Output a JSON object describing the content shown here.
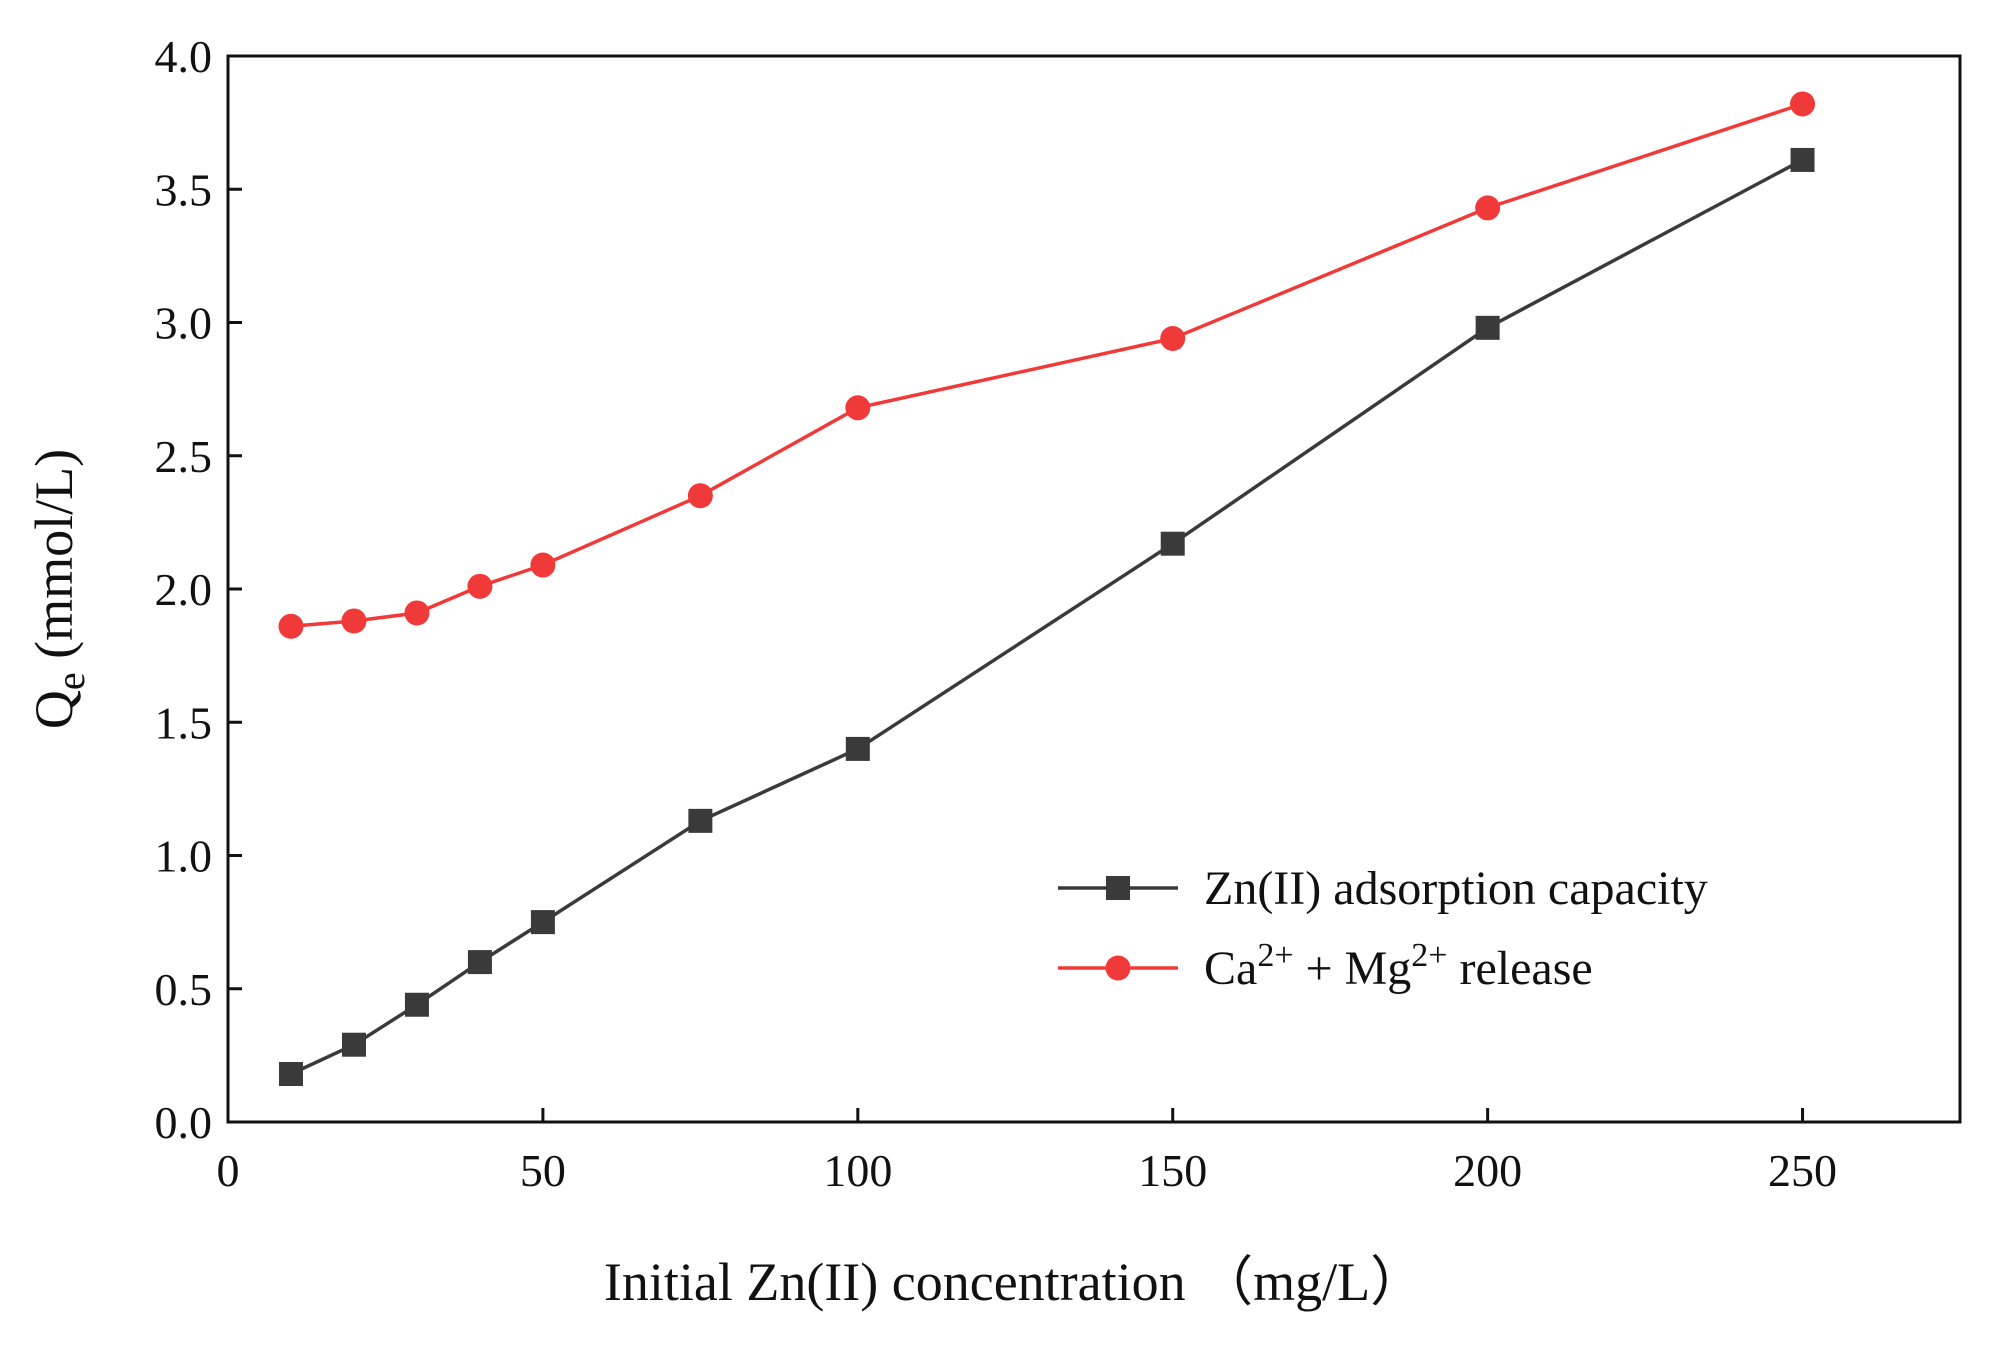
{
  "chart_data": {
    "type": "line",
    "title": "",
    "xlabel": "Initial Zn(II) concentration （mg/L）",
    "ylabel": {
      "main": "Q",
      "sub": "e",
      "rest": " (mmol/L)"
    },
    "xlim": [
      0,
      275
    ],
    "ylim": [
      0,
      4.0
    ],
    "xticks": [
      0,
      50,
      100,
      150,
      200,
      250
    ],
    "yticks": [
      0.0,
      0.5,
      1.0,
      1.5,
      2.0,
      2.5,
      3.0,
      3.5,
      4.0
    ],
    "ytick_labels": [
      "0.0",
      "0.5",
      "1.0",
      "1.5",
      "2.0",
      "2.5",
      "3.0",
      "3.5",
      "4.0"
    ],
    "grid": false,
    "legend_position": "lower-right",
    "x": [
      10,
      20,
      30,
      40,
      50,
      75,
      100,
      150,
      200,
      250
    ],
    "series": [
      {
        "name": "Zn(II) adsorption capacity",
        "legend_parts": [
          {
            "t": "Zn(II) adsorption capacity",
            "sup": false
          }
        ],
        "color": "#3a3a3a",
        "marker": "square",
        "values": [
          0.18,
          0.29,
          0.44,
          0.6,
          0.75,
          1.13,
          1.4,
          2.17,
          2.98,
          3.61
        ]
      },
      {
        "name": "Ca2+ + Mg2+ release",
        "legend_parts": [
          {
            "t": "Ca",
            "sup": false
          },
          {
            "t": "2+",
            "sup": true
          },
          {
            "t": " + Mg",
            "sup": false
          },
          {
            "t": "2+",
            "sup": true
          },
          {
            "t": " release",
            "sup": false
          }
        ],
        "color": "#f03a3a",
        "marker": "circle",
        "values": [
          1.86,
          1.88,
          1.91,
          2.01,
          2.09,
          2.35,
          2.68,
          2.94,
          3.43,
          3.82
        ]
      }
    ]
  }
}
